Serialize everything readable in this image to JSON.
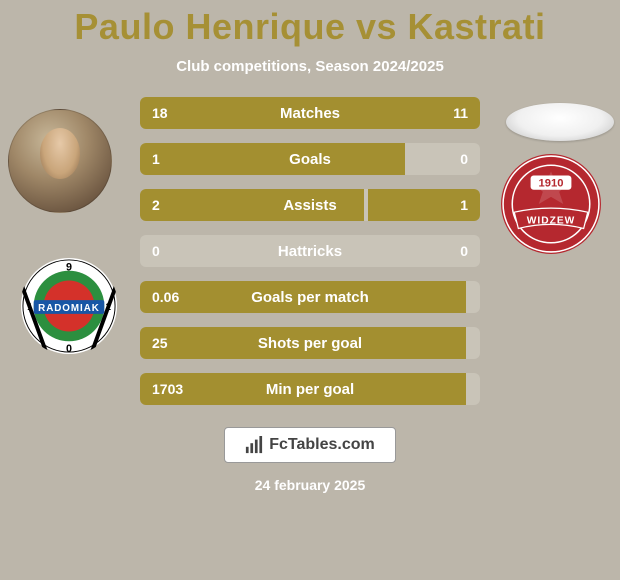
{
  "background_color": "#bcb6aa",
  "header": {
    "title": "Paulo Henrique vs Kastrati",
    "title_color": "#a69035",
    "subtitle": "Club competitions, Season 2024/2025",
    "subtitle_color": "#ffffff"
  },
  "comparison": {
    "row_bg_color": "#c9c4b8",
    "text_color": "#ffffff",
    "left_fill_color": "#a38f30",
    "right_fill_color": "#a38f30",
    "stats": [
      {
        "label": "Matches",
        "left_val": "18",
        "right_val": "11",
        "left_pct": 62,
        "right_pct": 38
      },
      {
        "label": "Goals",
        "left_val": "1",
        "right_val": "0",
        "left_pct": 78,
        "right_pct": 0
      },
      {
        "label": "Assists",
        "left_val": "2",
        "right_val": "1",
        "left_pct": 66,
        "right_pct": 33
      },
      {
        "label": "Hattricks",
        "left_val": "0",
        "right_val": "0",
        "left_pct": 0,
        "right_pct": 0
      },
      {
        "label": "Goals per match",
        "left_val": "0.06",
        "right_val": "",
        "left_pct": 96,
        "right_pct": 0
      },
      {
        "label": "Shots per goal",
        "left_val": "25",
        "right_val": "",
        "left_pct": 96,
        "right_pct": 0
      },
      {
        "label": "Min per goal",
        "left_val": "1703",
        "right_val": "",
        "left_pct": 96,
        "right_pct": 0
      }
    ]
  },
  "clubs": {
    "left": {
      "name": "Radomiak Radom",
      "banner_text": "RADOMIAK",
      "top_number": "9",
      "bottom_number": "0",
      "side_number": "1",
      "colors": {
        "outer": "#ffffff",
        "ring": "#2c8f3f",
        "inner": "#d4312a",
        "stripe": "#000000",
        "banner": "#1856a5"
      }
    },
    "right": {
      "name": "Widzew Łódź",
      "year": "1910",
      "ribbon_text": "WIDZEW",
      "colors": {
        "main": "#b5282f",
        "accent": "#ffffff",
        "ribbon": "#b5282f"
      }
    }
  },
  "footer": {
    "brand": "FcTables.com",
    "date": "24 february 2025",
    "date_color": "#ffffff"
  }
}
